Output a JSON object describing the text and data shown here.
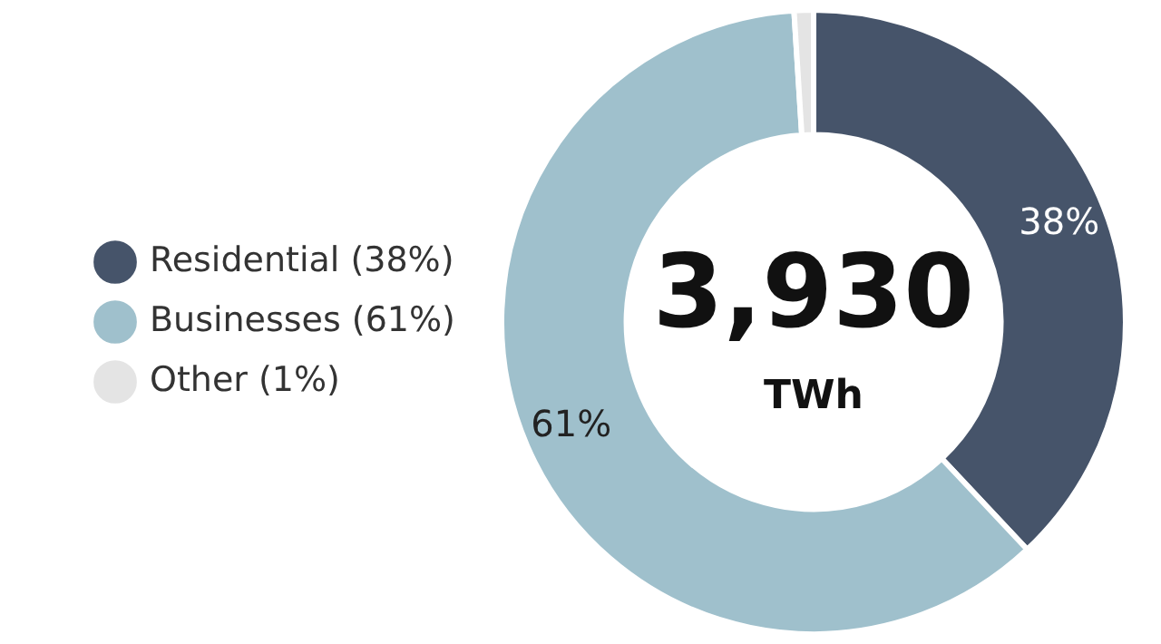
{
  "chart_data": {
    "type": "donut",
    "categories": [
      "Residential (38%)",
      "Businesses (61%)",
      "Other (1%)"
    ],
    "values": [
      38,
      61,
      1
    ],
    "colors": [
      "#46546a",
      "#9fc0cc",
      "#e4e4e4"
    ],
    "value_labels": [
      "38%",
      "61%",
      null
    ],
    "annotations": [
      "3,930",
      "TWh"
    ],
    "legend": "left"
  }
}
